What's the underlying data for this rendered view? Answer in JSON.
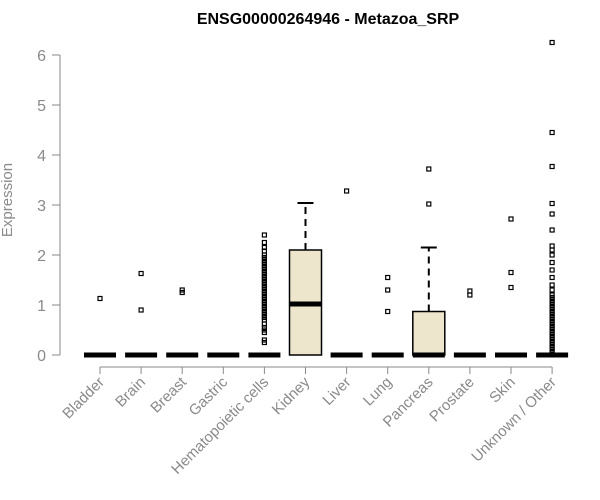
{
  "chart_data": {
    "type": "box",
    "title": "ENSG00000264946 - Metazoa_SRP",
    "xlabel": "",
    "ylabel": "Expression",
    "ylim": [
      0,
      6.3
    ],
    "yticks": [
      0,
      1,
      2,
      3,
      4,
      5,
      6
    ],
    "grid": false,
    "colors": {
      "box_fill": "#ede6cc",
      "stroke": "#000000",
      "axis": "#8a8a8a",
      "text": "#8a8a8a"
    },
    "categories": [
      "Bladder",
      "Brain",
      "Breast",
      "Gastric",
      "Hematopoietic cells",
      "Kidney",
      "Liver",
      "Lung",
      "Pancreas",
      "Prostate",
      "Skin",
      "Unknown / Other"
    ],
    "boxes": [
      {
        "category": "Bladder",
        "q1": 0,
        "median": 0,
        "q3": 0,
        "whisker_low": 0,
        "whisker_high": 0,
        "outliers": [
          1.13
        ]
      },
      {
        "category": "Brain",
        "q1": 0,
        "median": 0,
        "q3": 0,
        "whisker_low": 0,
        "whisker_high": 0,
        "outliers": [
          0.9,
          1.63
        ]
      },
      {
        "category": "Breast",
        "q1": 0,
        "median": 0,
        "q3": 0,
        "whisker_low": 0,
        "whisker_high": 0,
        "outliers": [
          1.25,
          1.3
        ]
      },
      {
        "category": "Gastric",
        "q1": 0,
        "median": 0,
        "q3": 0,
        "whisker_low": 0,
        "whisker_high": 0,
        "outliers": []
      },
      {
        "category": "Hematopoietic cells",
        "q1": 0,
        "median": 0,
        "q3": 0,
        "whisker_low": 0,
        "whisker_high": 0,
        "outliers": [
          0.25,
          0.3,
          0.45,
          0.5,
          0.55,
          0.62,
          0.7,
          0.75,
          0.8,
          0.85,
          0.9,
          0.95,
          1.0,
          1.05,
          1.1,
          1.15,
          1.2,
          1.25,
          1.3,
          1.35,
          1.4,
          1.45,
          1.5,
          1.55,
          1.6,
          1.65,
          1.7,
          1.75,
          1.8,
          1.85,
          1.9,
          1.95,
          2.0,
          2.08,
          2.15,
          2.25,
          2.4
        ]
      },
      {
        "category": "Kidney",
        "q1": 0,
        "median": 1.02,
        "q3": 2.1,
        "whisker_low": 0,
        "whisker_high": 3.04,
        "outliers": []
      },
      {
        "category": "Liver",
        "q1": 0,
        "median": 0,
        "q3": 0,
        "whisker_low": 0,
        "whisker_high": 0,
        "outliers": [
          3.28
        ]
      },
      {
        "category": "Lung",
        "q1": 0,
        "median": 0,
        "q3": 0,
        "whisker_low": 0,
        "whisker_high": 0,
        "outliers": [
          0.87,
          1.3,
          1.55
        ]
      },
      {
        "category": "Pancreas",
        "q1": 0,
        "median": 0,
        "q3": 0.87,
        "whisker_low": 0,
        "whisker_high": 2.15,
        "outliers": [
          3.02,
          3.72
        ]
      },
      {
        "category": "Prostate",
        "q1": 0,
        "median": 0,
        "q3": 0,
        "whisker_low": 0,
        "whisker_high": 0,
        "outliers": [
          1.2,
          1.28
        ]
      },
      {
        "category": "Skin",
        "q1": 0,
        "median": 0,
        "q3": 0,
        "whisker_low": 0,
        "whisker_high": 0,
        "outliers": [
          1.35,
          1.65,
          2.72
        ]
      },
      {
        "category": "Unknown / Other",
        "q1": 0,
        "median": 0,
        "q3": 0,
        "whisker_low": 0,
        "whisker_high": 0,
        "outliers": [
          0.05,
          0.1,
          0.15,
          0.2,
          0.25,
          0.3,
          0.35,
          0.4,
          0.45,
          0.5,
          0.55,
          0.6,
          0.65,
          0.7,
          0.75,
          0.8,
          0.85,
          0.9,
          0.95,
          1.0,
          1.05,
          1.1,
          1.15,
          1.2,
          1.3,
          1.4,
          1.55,
          1.7,
          1.85,
          2.0,
          2.1,
          2.18,
          2.5,
          2.82,
          3.03,
          3.77,
          4.45,
          6.25
        ]
      }
    ]
  }
}
